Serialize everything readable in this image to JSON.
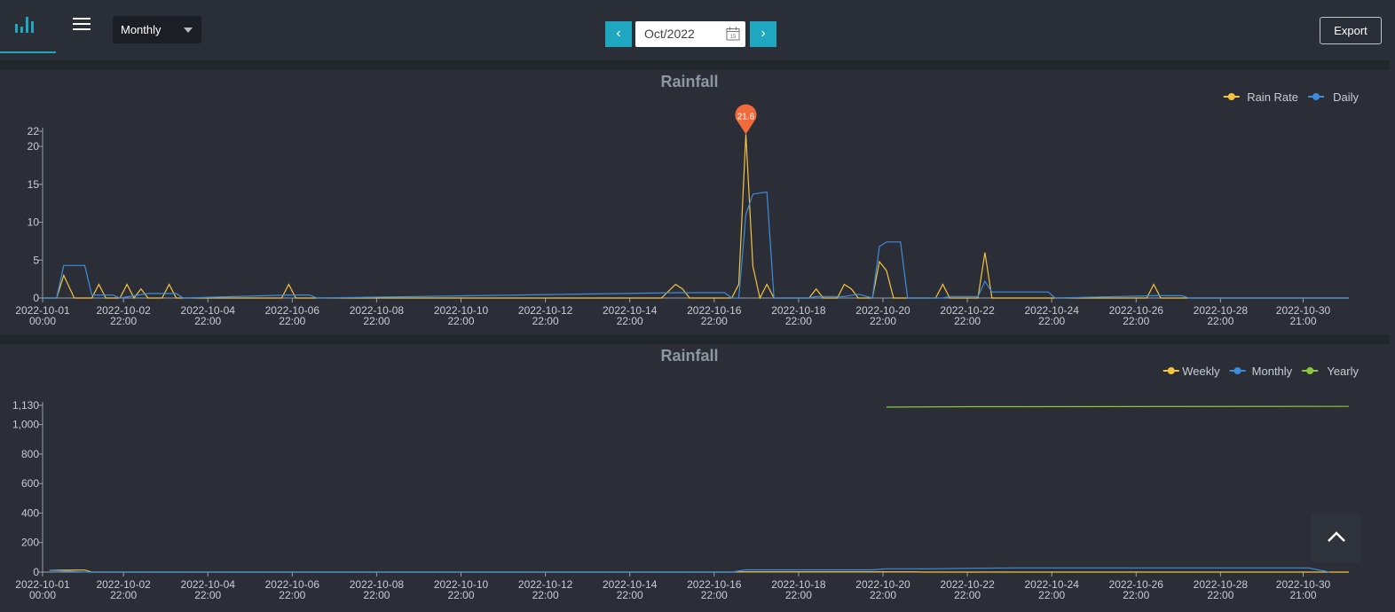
{
  "toolbar": {
    "chart_icon": "bar-chart-icon",
    "menu_icon": "hamburger-menu-icon",
    "period": "Monthly",
    "prev": "‹",
    "next": "›",
    "month": "Oct/2022",
    "calendar_icon": "calendar-icon",
    "export": "Export"
  },
  "scroll_top_icon": "chevron-up-icon",
  "colors": {
    "accent": "#1fa7c2",
    "yellow": "#f5c342",
    "blue": "#3b8ddd",
    "green": "#8cc63f",
    "marker": "#f26a3c"
  },
  "xticks": [
    [
      "2022-10-01",
      "00:00"
    ],
    [
      "2022-10-02",
      "22:00"
    ],
    [
      "2022-10-04",
      "22:00"
    ],
    [
      "2022-10-06",
      "22:00"
    ],
    [
      "2022-10-08",
      "22:00"
    ],
    [
      "2022-10-10",
      "22:00"
    ],
    [
      "2022-10-12",
      "22:00"
    ],
    [
      "2022-10-14",
      "22:00"
    ],
    [
      "2022-10-16",
      "22:00"
    ],
    [
      "2022-10-18",
      "22:00"
    ],
    [
      "2022-10-20",
      "22:00"
    ],
    [
      "2022-10-22",
      "22:00"
    ],
    [
      "2022-10-24",
      "22:00"
    ],
    [
      "2022-10-26",
      "22:00"
    ],
    [
      "2022-10-28",
      "22:00"
    ],
    [
      "2022-10-30",
      "21:00"
    ]
  ],
  "chart_data": [
    {
      "type": "line",
      "title": "Rainfall",
      "xlabel": "",
      "ylabel": "",
      "x_range": [
        "2022-10-01 00:00",
        "2022-10-31 23:00"
      ],
      "ylim": [
        0,
        22
      ],
      "yticks": [
        0,
        5,
        10,
        15,
        20,
        22
      ],
      "legend": "top-right",
      "grid": false,
      "max_marker": {
        "label": "21.6",
        "series": "Rain Rate",
        "x": "2022-10-17 16:00",
        "y": 21.6
      },
      "series": [
        {
          "name": "Rain Rate",
          "color": "#f5c342",
          "points": [
            [
              "2022-10-01 00:00",
              0
            ],
            [
              "2022-10-01 08:00",
              0
            ],
            [
              "2022-10-01 12:00",
              3
            ],
            [
              "2022-10-01 18:00",
              0
            ],
            [
              "2022-10-02 04:00",
              0
            ],
            [
              "2022-10-02 08:00",
              1.8
            ],
            [
              "2022-10-02 12:00",
              0
            ],
            [
              "2022-10-02 20:00",
              0
            ],
            [
              "2022-10-03 00:00",
              1.8
            ],
            [
              "2022-10-03 04:00",
              0
            ],
            [
              "2022-10-03 08:00",
              1.2
            ],
            [
              "2022-10-03 12:00",
              0
            ],
            [
              "2022-10-03 20:00",
              0
            ],
            [
              "2022-10-04 00:00",
              1.8
            ],
            [
              "2022-10-04 04:00",
              0
            ],
            [
              "2022-10-06 16:00",
              0
            ],
            [
              "2022-10-06 20:00",
              1.8
            ],
            [
              "2022-10-07 00:00",
              0
            ],
            [
              "2022-10-15 16:00",
              0
            ],
            [
              "2022-10-16 00:00",
              1.8
            ],
            [
              "2022-10-16 04:00",
              1.2
            ],
            [
              "2022-10-16 08:00",
              0
            ],
            [
              "2022-10-17 08:00",
              0
            ],
            [
              "2022-10-17 12:00",
              1.8
            ],
            [
              "2022-10-17 16:00",
              21.6
            ],
            [
              "2022-10-17 20:00",
              4.2
            ],
            [
              "2022-10-18 00:00",
              0
            ],
            [
              "2022-10-18 04:00",
              1.8
            ],
            [
              "2022-10-18 08:00",
              0
            ],
            [
              "2022-10-19 04:00",
              0
            ],
            [
              "2022-10-19 08:00",
              1.2
            ],
            [
              "2022-10-19 12:00",
              0
            ],
            [
              "2022-10-19 20:00",
              0
            ],
            [
              "2022-10-20 00:00",
              1.8
            ],
            [
              "2022-10-20 04:00",
              1.2
            ],
            [
              "2022-10-20 08:00",
              0
            ],
            [
              "2022-10-20 16:00",
              0
            ],
            [
              "2022-10-20 20:00",
              4.8
            ],
            [
              "2022-10-21 00:00",
              3.6
            ],
            [
              "2022-10-21 04:00",
              0
            ],
            [
              "2022-10-22 04:00",
              0
            ],
            [
              "2022-10-22 08:00",
              1.8
            ],
            [
              "2022-10-22 12:00",
              0
            ],
            [
              "2022-10-23 04:00",
              0
            ],
            [
              "2022-10-23 08:00",
              6
            ],
            [
              "2022-10-23 12:00",
              0
            ],
            [
              "2022-10-27 04:00",
              0
            ],
            [
              "2022-10-27 08:00",
              1.8
            ],
            [
              "2022-10-27 12:00",
              0
            ],
            [
              "2022-10-31 23:00",
              0
            ]
          ]
        },
        {
          "name": "Daily",
          "color": "#3b8ddd",
          "points": [
            [
              "2022-10-01 00:00",
              0
            ],
            [
              "2022-10-01 08:00",
              0
            ],
            [
              "2022-10-01 12:00",
              4.3
            ],
            [
              "2022-10-02 00:00",
              4.3
            ],
            [
              "2022-10-02 04:00",
              0.4
            ],
            [
              "2022-10-02 16:00",
              0.4
            ],
            [
              "2022-10-02 20:00",
              0
            ],
            [
              "2022-10-03 12:00",
              0.6
            ],
            [
              "2022-10-04 04:00",
              0.6
            ],
            [
              "2022-10-04 08:00",
              0
            ],
            [
              "2022-10-06 20:00",
              0.4
            ],
            [
              "2022-10-07 08:00",
              0.4
            ],
            [
              "2022-10-07 12:00",
              0
            ],
            [
              "2022-10-16 00:00",
              0.7
            ],
            [
              "2022-10-17 04:00",
              0.7
            ],
            [
              "2022-10-17 08:00",
              0
            ],
            [
              "2022-10-17 12:00",
              0
            ],
            [
              "2022-10-17 16:00",
              11
            ],
            [
              "2022-10-17 20:00",
              13.7
            ],
            [
              "2022-10-18 04:00",
              14
            ],
            [
              "2022-10-18 08:00",
              0
            ],
            [
              "2022-10-19 04:00",
              0
            ],
            [
              "2022-10-19 08:00",
              0.2
            ],
            [
              "2022-10-20 00:00",
              0.2
            ],
            [
              "2022-10-20 08:00",
              0.5
            ],
            [
              "2022-10-20 16:00",
              0
            ],
            [
              "2022-10-20 20:00",
              6.8
            ],
            [
              "2022-10-21 00:00",
              7.4
            ],
            [
              "2022-10-21 08:00",
              7.4
            ],
            [
              "2022-10-21 12:00",
              0
            ],
            [
              "2022-10-22 08:00",
              0
            ],
            [
              "2022-10-22 12:00",
              0.2
            ],
            [
              "2022-10-23 04:00",
              0.2
            ],
            [
              "2022-10-23 08:00",
              2.2
            ],
            [
              "2022-10-23 12:00",
              0.8
            ],
            [
              "2022-10-24 20:00",
              0.8
            ],
            [
              "2022-10-25 00:00",
              0
            ],
            [
              "2022-10-27 08:00",
              0.3
            ],
            [
              "2022-10-28 00:00",
              0.3
            ],
            [
              "2022-10-28 04:00",
              0
            ],
            [
              "2022-10-31 23:00",
              0
            ]
          ]
        }
      ]
    },
    {
      "type": "line",
      "title": "Rainfall",
      "xlabel": "",
      "ylabel": "",
      "x_range": [
        "2022-10-01 00:00",
        "2022-10-31 23:00"
      ],
      "ylim": [
        0,
        1130
      ],
      "yticks": [
        0,
        200,
        400,
        600,
        800,
        1000,
        1130
      ],
      "ytick_labels": [
        "0",
        "200",
        "400",
        "600",
        "800",
        "1,000",
        "1,130"
      ],
      "legend": "top-right",
      "grid": false,
      "series": [
        {
          "name": "Weekly",
          "color": "#f5c342",
          "points": [
            [
              "2022-10-01 04:00",
              12
            ],
            [
              "2022-10-01 20:00",
              14
            ],
            [
              "2022-10-02 00:00",
              14
            ],
            [
              "2022-10-02 04:00",
              0
            ],
            [
              "2022-10-17 08:00",
              0
            ],
            [
              "2022-10-17 12:00",
              2
            ],
            [
              "2022-10-21 16:00",
              2
            ],
            [
              "2022-10-21 20:00",
              0
            ],
            [
              "2022-10-31 23:00",
              0
            ]
          ]
        },
        {
          "name": "Monthly",
          "color": "#3b8ddd",
          "points": [
            [
              "2022-10-01 04:00",
              12
            ],
            [
              "2022-10-02 00:00",
              0
            ],
            [
              "2022-10-17 08:00",
              0
            ],
            [
              "2022-10-17 16:00",
              15
            ],
            [
              "2022-10-20 16:00",
              15
            ],
            [
              "2022-10-21 00:00",
              22
            ],
            [
              "2022-10-22 00:00",
              22
            ],
            [
              "2022-10-23 00:00",
              26
            ],
            [
              "2022-10-24 00:00",
              28
            ],
            [
              "2022-10-31 00:00",
              28
            ],
            [
              "2022-10-31 12:00",
              0
            ]
          ]
        },
        {
          "name": "Yearly",
          "color": "#8cc63f",
          "points": [
            [
              "2022-10-21 00:00",
              1118
            ],
            [
              "2022-10-23 00:00",
              1121
            ],
            [
              "2022-10-31 23:00",
              1123
            ]
          ]
        }
      ]
    }
  ]
}
